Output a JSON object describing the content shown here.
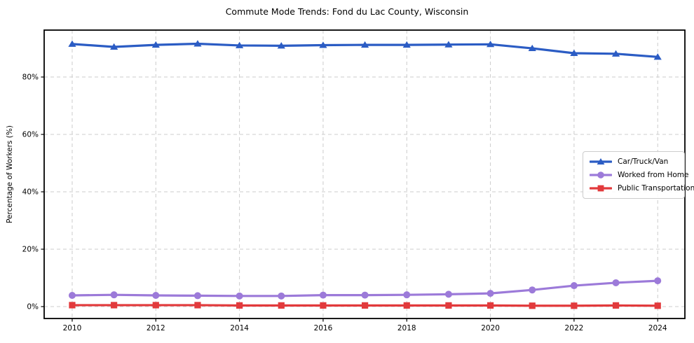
{
  "figure": {
    "title": "Commute Mode Trends: Fond du Lac County, Wisconsin",
    "background_color": "#ffffff",
    "grid_color": "#cccccc",
    "spine_color": "#000000"
  },
  "chart_data": {
    "type": "line",
    "title": "Commute Mode Trends: Fond du Lac County, Wisconsin",
    "xlabel": "",
    "ylabel": "Percentage of Workers (%)",
    "x": [
      2010,
      2011,
      2012,
      2013,
      2014,
      2015,
      2016,
      2017,
      2018,
      2019,
      2020,
      2021,
      2022,
      2023,
      2024
    ],
    "x_ticks": [
      2010,
      2012,
      2014,
      2016,
      2018,
      2020,
      2022,
      2024
    ],
    "x_tick_labels": [
      "2010",
      "2012",
      "2014",
      "2016",
      "2018",
      "2020",
      "2022",
      "2024"
    ],
    "y_ticks": [
      0,
      20,
      40,
      60,
      80
    ],
    "y_tick_labels": [
      "0%",
      "20%",
      "40%",
      "60%",
      "80%"
    ],
    "xlim": [
      2009.33,
      2024.65
    ],
    "ylim": [
      -4.15,
      96.35
    ],
    "grid": true,
    "grid_style": "dashed",
    "legend_position": "center-right",
    "series": [
      {
        "name": "Car/Truck/Van",
        "color": "#2b5cc4",
        "marker": "triangle",
        "values": [
          91.5,
          90.5,
          91.2,
          91.6,
          91.0,
          90.9,
          91.1,
          91.2,
          91.2,
          91.3,
          91.4,
          90.0,
          88.3,
          88.1,
          87.0
        ]
      },
      {
        "name": "Worked from Home",
        "color": "#9c7ad9",
        "marker": "circle",
        "values": [
          3.9,
          4.1,
          3.9,
          3.8,
          3.7,
          3.7,
          4.0,
          4.0,
          4.1,
          4.3,
          4.6,
          5.8,
          7.3,
          8.3,
          9.0
        ]
      },
      {
        "name": "Public Transportation",
        "color": "#e23a3c",
        "marker": "square",
        "values": [
          0.5,
          0.5,
          0.5,
          0.5,
          0.4,
          0.4,
          0.4,
          0.4,
          0.4,
          0.4,
          0.4,
          0.3,
          0.3,
          0.4,
          0.3
        ]
      }
    ]
  }
}
